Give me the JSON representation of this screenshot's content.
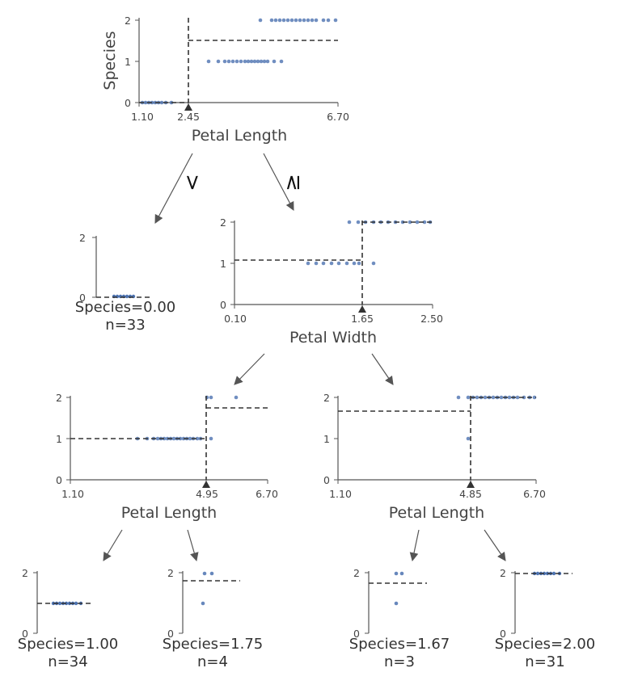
{
  "tree": {
    "edge_labels": {
      "left": "<",
      "right": "≥"
    },
    "nodes": [
      {
        "id": "root",
        "xlabel": "Petal Length",
        "ylabel": "Species",
        "xticks": [
          "1.10",
          "2.45",
          "6.70"
        ],
        "yticks": [
          "0",
          "1",
          "2"
        ],
        "split": 2.45,
        "pred_left": 0.0,
        "pred_right": 1.5
      },
      {
        "id": "node_pw",
        "xlabel": "Petal Width",
        "xticks": [
          "0.10",
          "1.65",
          "2.50"
        ],
        "yticks": [
          "0",
          "1",
          "2"
        ],
        "split": 1.65,
        "pred_left": 1.09,
        "pred_right": 2.0
      },
      {
        "id": "node_pl_left",
        "xlabel": "Petal Length",
        "xticks": [
          "1.10",
          "4.95",
          "6.70"
        ],
        "yticks": [
          "0",
          "1",
          "2"
        ],
        "split": 4.95,
        "pred_left": 1.0,
        "pred_right": 1.75
      },
      {
        "id": "node_pl_right",
        "xlabel": "Petal Length",
        "xticks": [
          "1.10",
          "4.85",
          "6.70"
        ],
        "yticks": [
          "0",
          "1",
          "2"
        ],
        "split": 4.85,
        "pred_left": 1.67,
        "pred_right": 2.0
      }
    ],
    "leaves": [
      {
        "id": "leaf_a",
        "yticks": [
          "0",
          "2"
        ],
        "prediction": "Species=0.00",
        "count": "n=33"
      },
      {
        "id": "leaf_b",
        "yticks": [
          "0",
          "2"
        ],
        "prediction": "Species=1.00",
        "count": "n=34"
      },
      {
        "id": "leaf_c",
        "yticks": [
          "0",
          "2"
        ],
        "prediction": "Species=1.75",
        "count": "n=4"
      },
      {
        "id": "leaf_d",
        "yticks": [
          "0",
          "2"
        ],
        "prediction": "Species=1.67",
        "count": "n=3"
      },
      {
        "id": "leaf_e",
        "yticks": [
          "0",
          "2"
        ],
        "prediction": "Species=2.00",
        "count": "n=31"
      }
    ]
  },
  "colors": {
    "points": "#4c72b0",
    "axis": "#555555",
    "dashed": "#333333",
    "arrow": "#555555",
    "marker": "#333333"
  }
}
